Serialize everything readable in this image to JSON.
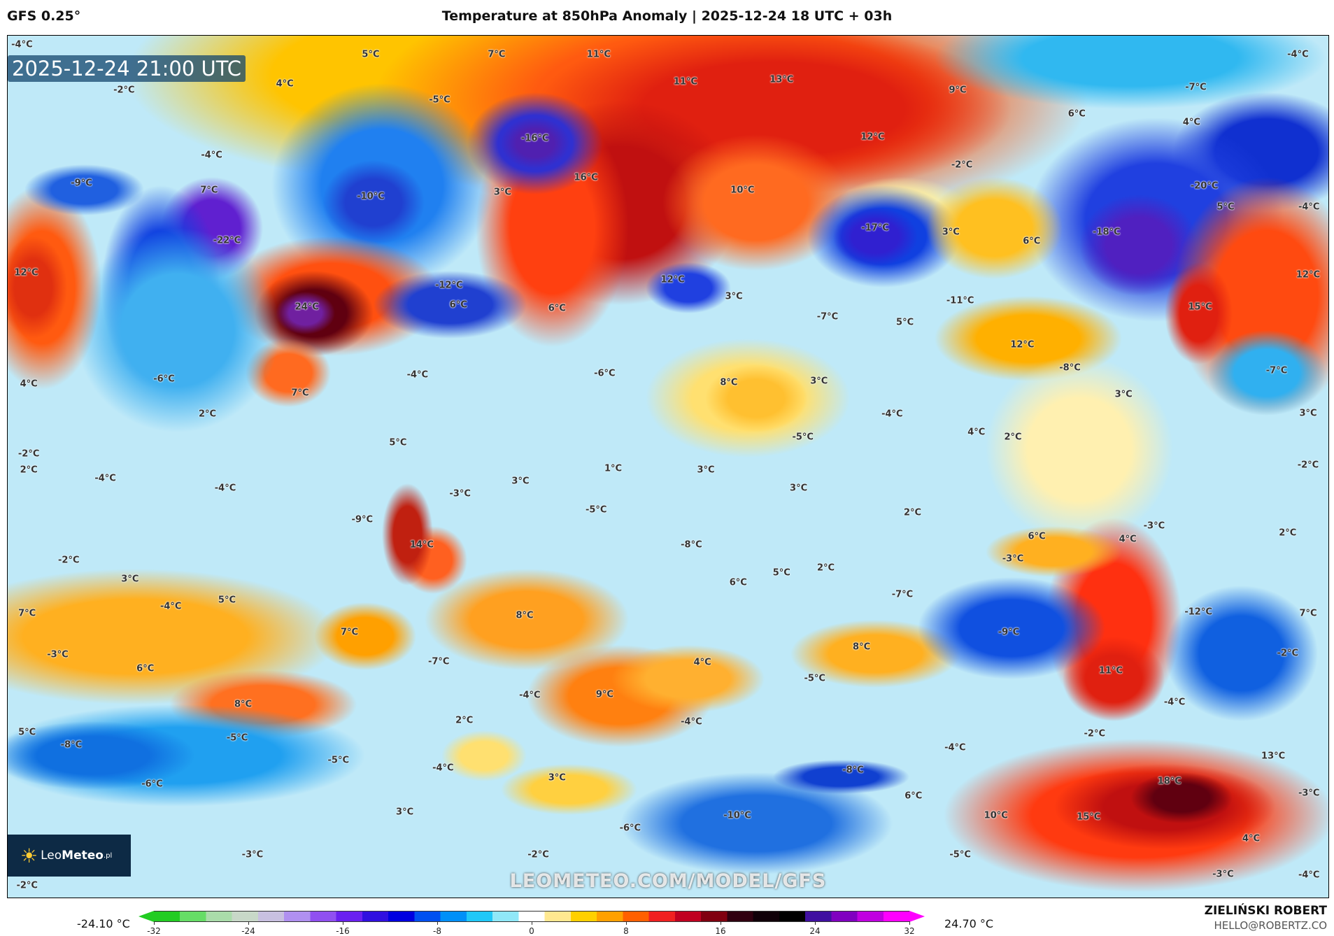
{
  "header": {
    "model": "GFS 0.25°",
    "title": "Temperature at 850hPa Anomaly | 2025-12-24 18 UTC + 03h"
  },
  "map": {
    "timestamp": "2025-12-24 21:00 UTC",
    "logo_text_light": "Leo",
    "logo_text_bold": "Meteo",
    "logo_suffix": ".pl",
    "watermark": "LEOMETEO.COM/MODEL/GFS",
    "labels": [
      "-4°C",
      "5°C",
      "7°C",
      "11°C",
      "-4°C",
      "-2°C",
      "4°C",
      "11°C",
      "13°C",
      "9°C",
      "-7°C",
      "-5°C",
      "6°C",
      "4°C",
      "-16°C",
      "12°C",
      "-4°C",
      "-2°C",
      "-9°C",
      "7°C",
      "3°C",
      "-10°C",
      "16°C",
      "10°C",
      "-20°C",
      "5°C",
      "-4°C",
      "-22°C",
      "-17°C",
      "3°C",
      "6°C",
      "-18°C",
      "12°C",
      "-12°C",
      "6°C",
      "24°C",
      "12°C",
      "6°C",
      "3°C",
      "-11°C",
      "-7°C",
      "5°C",
      "15°C",
      "12°C",
      "12°C",
      "-6°C",
      "4°C",
      "-4°C",
      "-6°C",
      "8°C",
      "3°C",
      "-8°C",
      "-7°C",
      "7°C",
      "3°C",
      "2°C",
      "-4°C",
      "3°C",
      "-5°C",
      "4°C",
      "2°C",
      "5°C",
      "-2°C",
      "2°C",
      "1°C",
      "3°C",
      "-2°C",
      "-4°C",
      "-4°C",
      "3°C",
      "-3°C",
      "3°C",
      "-5°C",
      "2°C",
      "-3°C",
      "-9°C",
      "14°C",
      "-8°C",
      "6°C",
      "4°C",
      "-3°C",
      "2°C",
      "-2°C",
      "2°C",
      "3°C",
      "6°C",
      "5°C",
      "5°C",
      "-4°C",
      "-7°C",
      "7°C",
      "8°C",
      "7°C",
      "-12°C",
      "7°C",
      "-9°C",
      "-3°C",
      "8°C",
      "-7°C",
      "4°C",
      "-2°C",
      "6°C",
      "11°C",
      "-5°C",
      "9°C",
      "-4°C",
      "8°C",
      "-4°C",
      "2°C",
      "-4°C",
      "-2°C",
      "5°C",
      "-8°C",
      "-5°C",
      "-4°C",
      "13°C",
      "-5°C",
      "-4°C",
      "3°C",
      "-8°C",
      "18°C",
      "-6°C",
      "6°C",
      "-3°C",
      "3°C",
      "-10°C",
      "10°C",
      "15°C",
      "-6°C",
      "4°C",
      "-3°C",
      "-5°C",
      "-2°C",
      "-2°C",
      "-3°C",
      "-4°C"
    ]
  },
  "colorbar": {
    "unit": "°C",
    "min_label": "-24.10 °C",
    "max_label": "24.70 °C",
    "ticks": [
      "-32",
      "-24",
      "-16",
      "-8",
      "0",
      "8",
      "16",
      "24",
      "32"
    ],
    "range": [
      -32,
      32
    ],
    "colors": [
      "#22cc22",
      "#66dd66",
      "#aadcaa",
      "#c8d8c8",
      "#c8c0e0",
      "#b090f0",
      "#9050f0",
      "#6a20f0",
      "#3010e0",
      "#0000e0",
      "#0050f0",
      "#0090f8",
      "#20c8f8",
      "#90e8f8",
      "#ffffff",
      "#ffe890",
      "#ffd000",
      "#ffa000",
      "#ff6000",
      "#f02020",
      "#c00020",
      "#800010",
      "#300010",
      "#100008",
      "#000000",
      "#4010a0",
      "#8000c0",
      "#c000e0",
      "#ff00ff"
    ]
  },
  "credits": {
    "author": "ZIELIŃSKI ROBERT",
    "email": "HELLO@ROBERTZ.CO"
  }
}
